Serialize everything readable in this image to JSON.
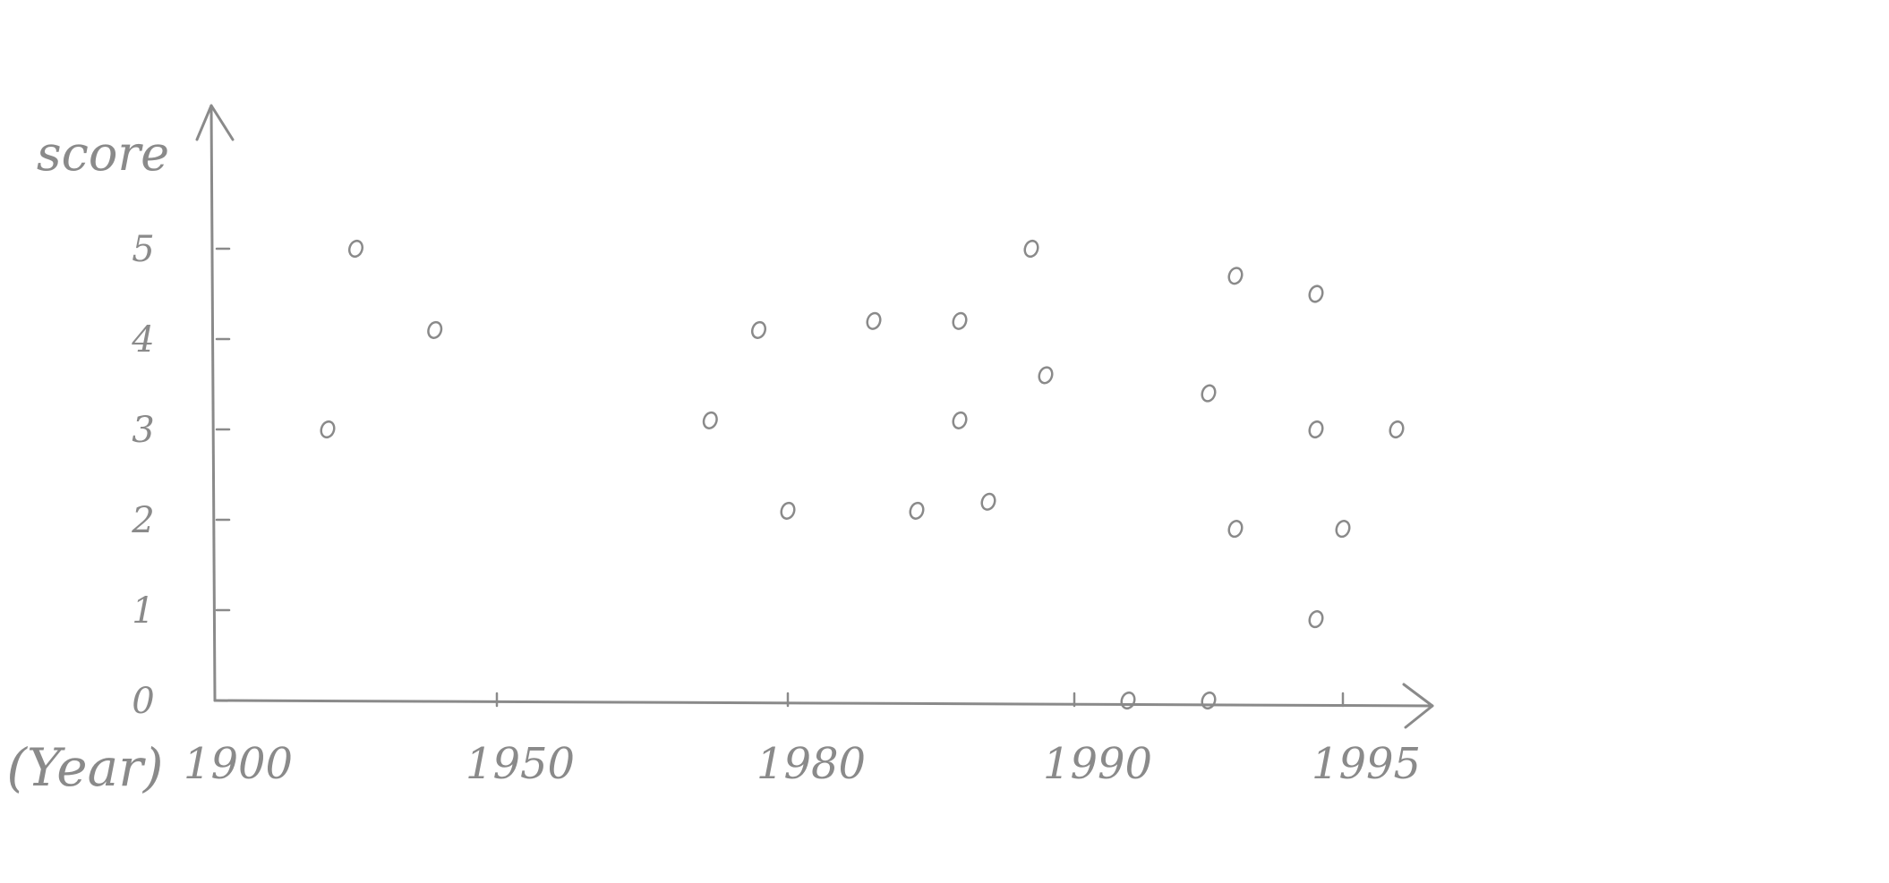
{
  "chart_data": {
    "type": "scatter",
    "title": "",
    "xlabel": "(Year)",
    "ylabel": "score",
    "x_ticks": [
      "1900",
      "1950",
      "1980",
      "1990",
      "1995"
    ],
    "y_ticks": [
      "0",
      "1",
      "2",
      "3",
      "4",
      "5"
    ],
    "ylim": [
      0,
      5.3
    ],
    "marker": "o",
    "grid": false,
    "x_scale": "uneven (as drawn)",
    "points": [
      {
        "x": 1920,
        "y": 3.0
      },
      {
        "x": 1925,
        "y": 5.0
      },
      {
        "x": 1939,
        "y": 4.1
      },
      {
        "x": 1972,
        "y": 3.1
      },
      {
        "x": 1977,
        "y": 4.1
      },
      {
        "x": 1980,
        "y": 2.1
      },
      {
        "x": 1983,
        "y": 4.2
      },
      {
        "x": 1984.5,
        "y": 2.1
      },
      {
        "x": 1986,
        "y": 3.1
      },
      {
        "x": 1986,
        "y": 4.2
      },
      {
        "x": 1987,
        "y": 2.2
      },
      {
        "x": 1988.5,
        "y": 5.0
      },
      {
        "x": 1989,
        "y": 3.6
      },
      {
        "x": 1991,
        "y": 0.0
      },
      {
        "x": 1992.5,
        "y": 3.4
      },
      {
        "x": 1992.5,
        "y": 0.0
      },
      {
        "x": 1993,
        "y": 4.7
      },
      {
        "x": 1993,
        "y": 1.9
      },
      {
        "x": 1994.5,
        "y": 4.5
      },
      {
        "x": 1994.5,
        "y": 3.0
      },
      {
        "x": 1994.5,
        "y": 0.9
      },
      {
        "x": 1995,
        "y": 1.9
      },
      {
        "x": 1996,
        "y": 3.0
      }
    ]
  }
}
